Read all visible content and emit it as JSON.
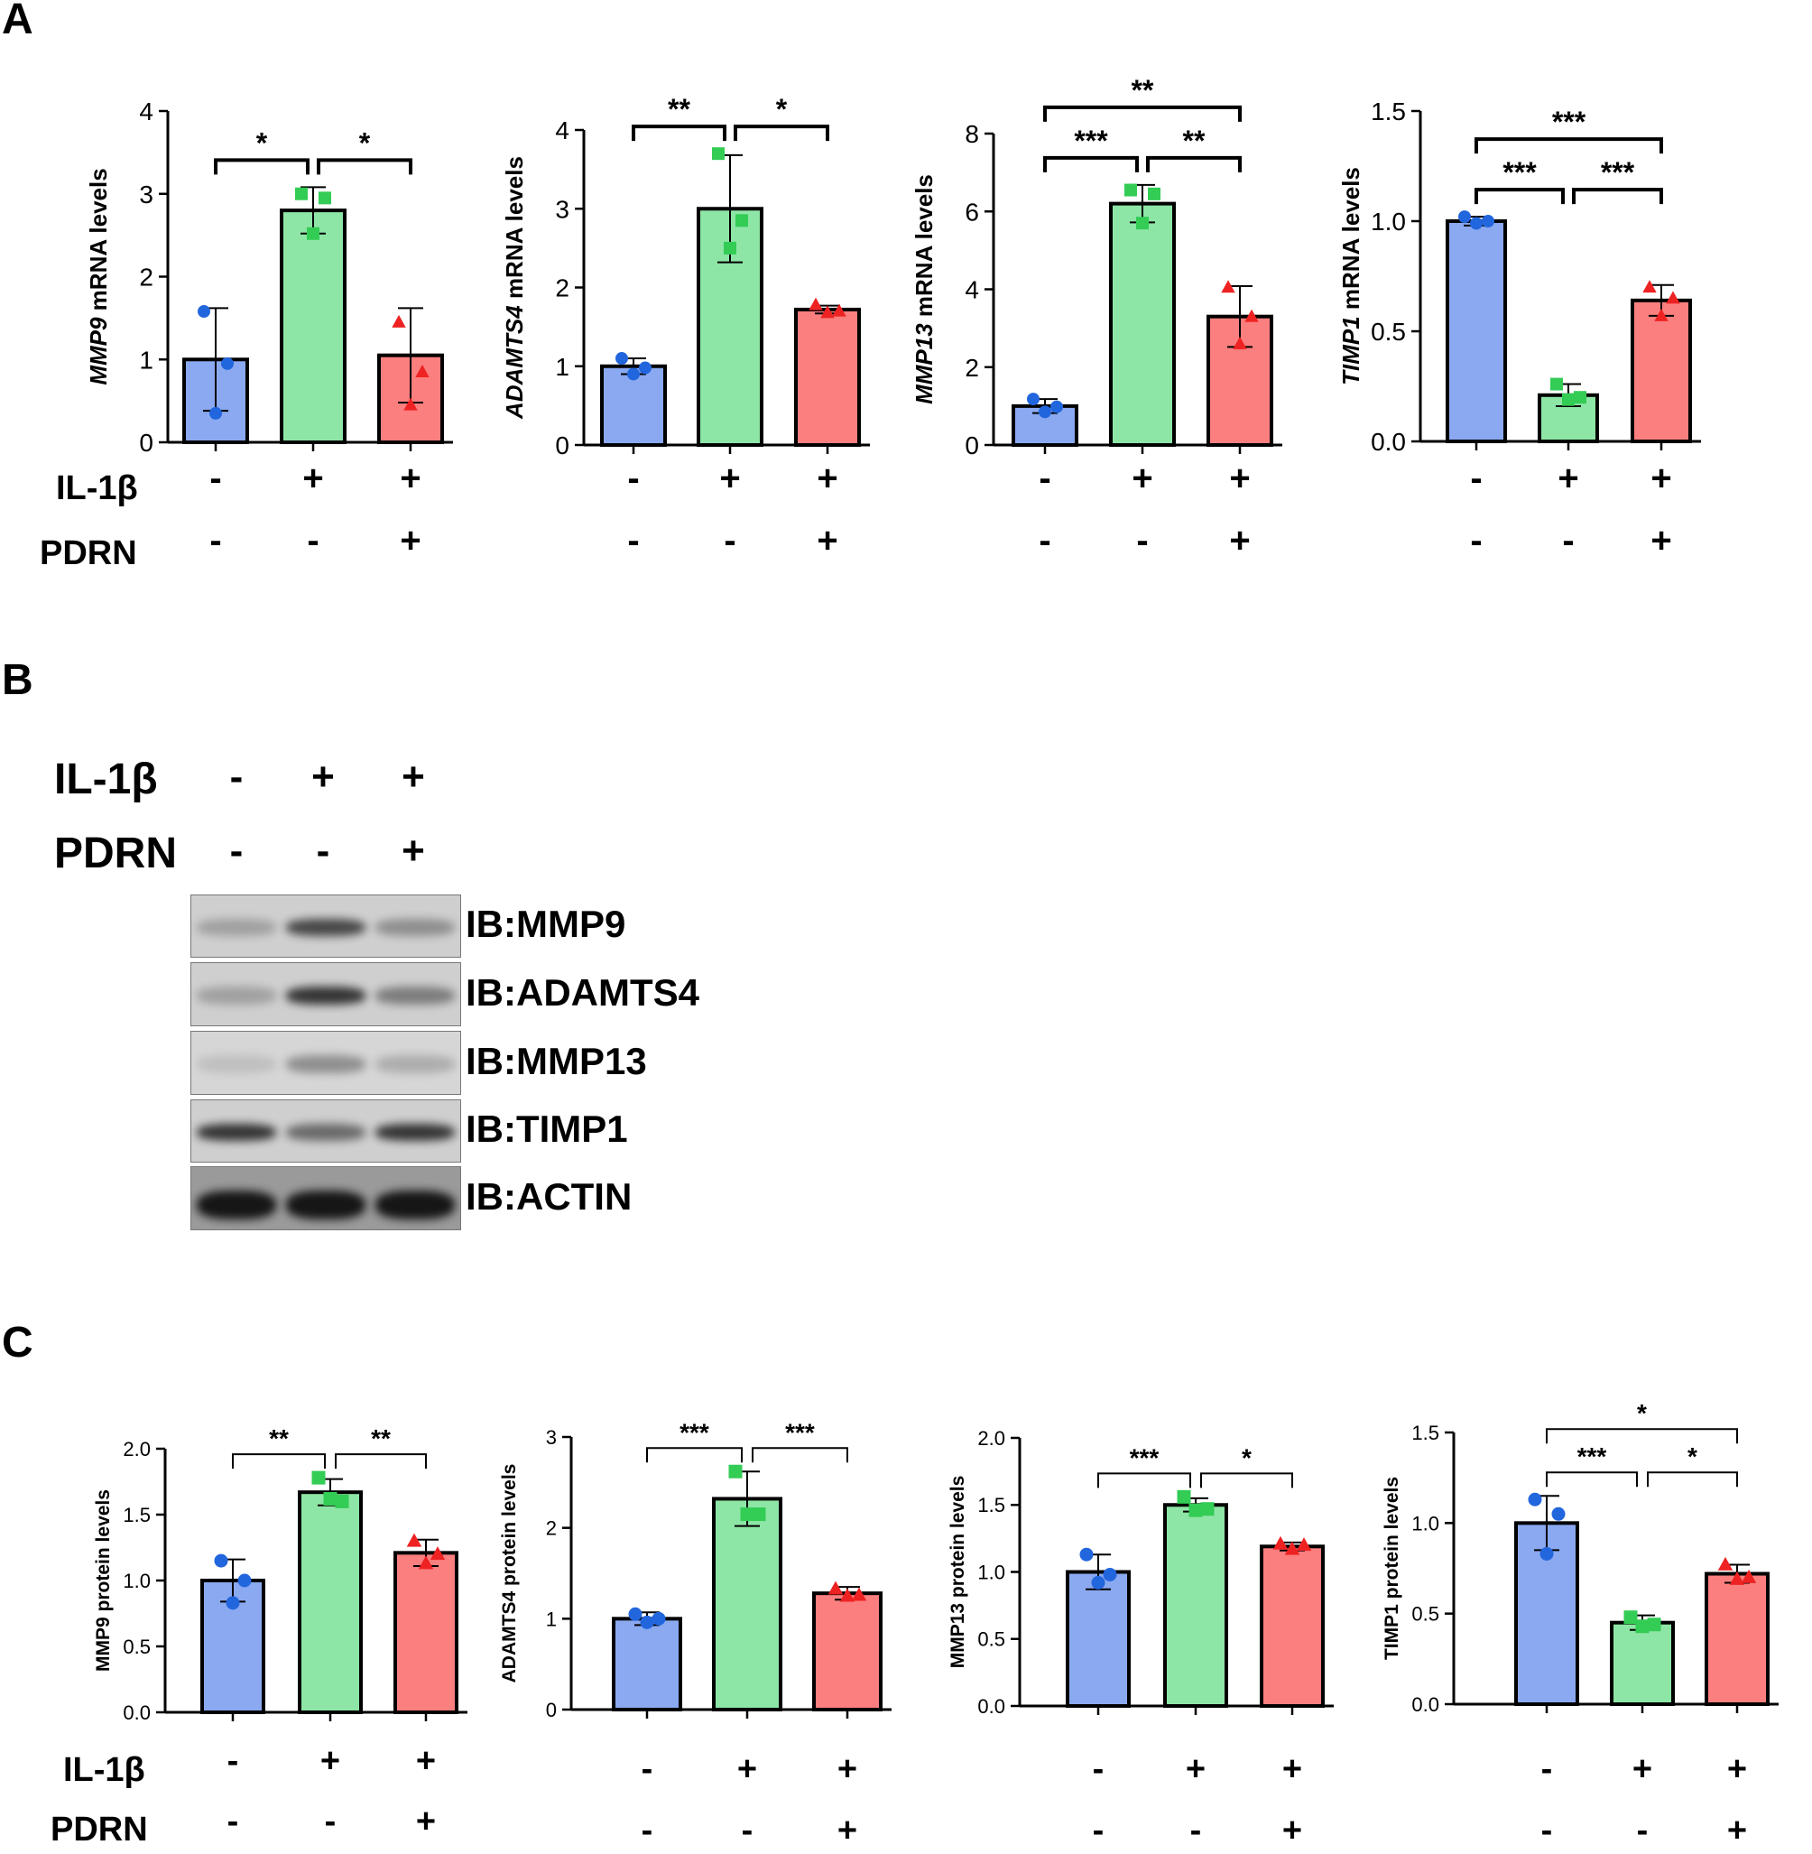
{
  "panels": {
    "A": "A",
    "B": "B",
    "C": "C"
  },
  "conditions": {
    "row1_label": "IL-1β",
    "row2_label": "PDRN",
    "row1_signs": [
      "-",
      "+",
      "+"
    ],
    "row2_signs": [
      "-",
      "-",
      "+"
    ]
  },
  "colors": {
    "control": "#8aa9f0",
    "il1b": "#8ee6a6",
    "il1b_pdrn": "#fb7f7f",
    "control_points": "#2266dd",
    "il1b_points": "#33cc55",
    "il1b_pdrn_points": "#ee2222"
  },
  "western_blot": {
    "labels": [
      "IB:MMP9",
      "IB:ADAMTS4",
      "IB:MMP13",
      "IB:TIMP1",
      "IB:ACTIN"
    ],
    "band_intensity": [
      [
        0.25,
        0.75,
        0.35
      ],
      [
        0.25,
        0.85,
        0.45
      ],
      [
        0.08,
        0.35,
        0.18
      ],
      [
        0.85,
        0.55,
        0.85
      ],
      [
        1.0,
        1.0,
        1.0
      ]
    ]
  },
  "chart_data": [
    {
      "id": "A1",
      "type": "bar",
      "ylabel_italic": "MMP9",
      "ylabel_rest": " mRNA levels",
      "ylim": [
        0,
        4
      ],
      "yticks": [
        "0",
        "1",
        "2",
        "3",
        "4"
      ],
      "values": [
        1.0,
        2.8,
        1.05
      ],
      "errors": [
        0.62,
        0.28,
        0.57
      ],
      "points": [
        [
          1.58,
          0.95,
          0.35
        ],
        [
          3.0,
          2.95,
          2.52
        ],
        [
          1.45,
          0.85,
          0.45
        ]
      ],
      "significance": [
        {
          "from": 0,
          "to": 1,
          "label": "*",
          "level": 1
        },
        {
          "from": 1,
          "to": 2,
          "label": "*",
          "level": 1
        }
      ]
    },
    {
      "id": "A2",
      "type": "bar",
      "ylabel_italic": "ADAMTS4",
      "ylabel_rest": " mRNA levels",
      "ylim": [
        0,
        4
      ],
      "yticks": [
        "0",
        "1",
        "2",
        "3",
        "4"
      ],
      "values": [
        1.0,
        3.0,
        1.72
      ],
      "errors": [
        0.1,
        0.68,
        0.05
      ],
      "points": [
        [
          1.1,
          0.98,
          0.9
        ],
        [
          3.7,
          2.85,
          2.5
        ],
        [
          1.78,
          1.7,
          1.68
        ]
      ],
      "significance": [
        {
          "from": 0,
          "to": 1,
          "label": "**",
          "level": 1
        },
        {
          "from": 1,
          "to": 2,
          "label": "*",
          "level": 1
        }
      ]
    },
    {
      "id": "A3",
      "type": "bar",
      "ylabel_italic": "MMP13",
      "ylabel_rest": " mRNA levels",
      "ylim": [
        0,
        8
      ],
      "yticks": [
        "0",
        "2",
        "4",
        "6",
        "8"
      ],
      "values": [
        1.0,
        6.2,
        3.3
      ],
      "errors": [
        0.18,
        0.48,
        0.78
      ],
      "points": [
        [
          1.18,
          0.98,
          0.85
        ],
        [
          6.55,
          6.45,
          5.7
        ],
        [
          4.05,
          3.3,
          2.6
        ]
      ],
      "significance": [
        {
          "from": 0,
          "to": 1,
          "label": "***",
          "level": 1
        },
        {
          "from": 1,
          "to": 2,
          "label": "**",
          "level": 1
        },
        {
          "from": 0,
          "to": 2,
          "label": "**",
          "level": 2
        }
      ]
    },
    {
      "id": "A4",
      "type": "bar",
      "ylabel_italic": "TIMP1",
      "ylabel_rest": " mRNA levels",
      "ylim": [
        0,
        1.5
      ],
      "yticks": [
        "0.0",
        "0.5",
        "1.0",
        "1.5"
      ],
      "values": [
        1.0,
        0.21,
        0.64
      ],
      "errors": [
        0.02,
        0.05,
        0.07
      ],
      "points": [
        [
          1.02,
          1.0,
          0.99
        ],
        [
          0.26,
          0.2,
          0.19
        ],
        [
          0.7,
          0.65,
          0.57
        ]
      ],
      "significance": [
        {
          "from": 0,
          "to": 1,
          "label": "***",
          "level": 1
        },
        {
          "from": 1,
          "to": 2,
          "label": "***",
          "level": 1
        },
        {
          "from": 0,
          "to": 2,
          "label": "***",
          "level": 2
        }
      ]
    },
    {
      "id": "C1",
      "type": "bar",
      "ylabel_italic": "",
      "ylabel_rest": "MMP9 protein levels",
      "ylim": [
        0,
        2.0
      ],
      "yticks": [
        "0.0",
        "0.5",
        "1.0",
        "1.5",
        "2.0"
      ],
      "values": [
        1.0,
        1.67,
        1.21
      ],
      "errors": [
        0.16,
        0.1,
        0.1
      ],
      "points": [
        [
          1.15,
          1.0,
          0.83
        ],
        [
          1.78,
          1.6,
          1.62
        ],
        [
          1.3,
          1.2,
          1.13
        ]
      ],
      "significance": [
        {
          "from": 0,
          "to": 1,
          "label": "**",
          "level": 1
        },
        {
          "from": 1,
          "to": 2,
          "label": "**",
          "level": 1
        }
      ]
    },
    {
      "id": "C2",
      "type": "bar",
      "ylabel_italic": "",
      "ylabel_rest": "ADAMTS4 protein levels",
      "ylim": [
        0,
        3
      ],
      "yticks": [
        "0",
        "1",
        "2",
        "3"
      ],
      "values": [
        1.0,
        2.32,
        1.28
      ],
      "errors": [
        0.07,
        0.3,
        0.07
      ],
      "points": [
        [
          1.05,
          1.0,
          0.96
        ],
        [
          2.62,
          2.15,
          2.15
        ],
        [
          1.33,
          1.26,
          1.25
        ]
      ],
      "significance": [
        {
          "from": 0,
          "to": 1,
          "label": "***",
          "level": 1
        },
        {
          "from": 1,
          "to": 2,
          "label": "***",
          "level": 1
        }
      ]
    },
    {
      "id": "C3",
      "type": "bar",
      "ylabel_italic": "",
      "ylabel_rest": "MMP13 protein levels",
      "ylim": [
        0,
        2.0
      ],
      "yticks": [
        "0.0",
        "0.5",
        "1.0",
        "1.5",
        "2.0"
      ],
      "values": [
        1.0,
        1.5,
        1.19
      ],
      "errors": [
        0.13,
        0.05,
        0.03
      ],
      "points": [
        [
          1.13,
          0.98,
          0.92
        ],
        [
          1.56,
          1.47,
          1.46
        ],
        [
          1.21,
          1.2,
          1.17
        ]
      ],
      "significance": [
        {
          "from": 0,
          "to": 1,
          "label": "***",
          "level": 1
        },
        {
          "from": 1,
          "to": 2,
          "label": "*",
          "level": 1
        }
      ]
    },
    {
      "id": "C4",
      "type": "bar",
      "ylabel_italic": "",
      "ylabel_rest": "TIMP1 protein levels",
      "ylim": [
        0,
        1.5
      ],
      "yticks": [
        "0.0",
        "0.5",
        "1.0",
        "1.5"
      ],
      "values": [
        1.0,
        0.45,
        0.72
      ],
      "errors": [
        0.15,
        0.04,
        0.05
      ],
      "points": [
        [
          1.13,
          1.05,
          0.83
        ],
        [
          0.48,
          0.44,
          0.43
        ],
        [
          0.77,
          0.7,
          0.69
        ]
      ],
      "significance": [
        {
          "from": 0,
          "to": 1,
          "label": "***",
          "level": 1
        },
        {
          "from": 1,
          "to": 2,
          "label": "*",
          "level": 1
        },
        {
          "from": 0,
          "to": 2,
          "label": "*",
          "level": 2
        }
      ]
    }
  ]
}
